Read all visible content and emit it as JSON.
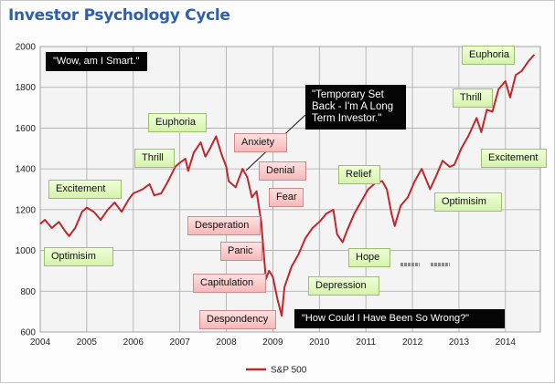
{
  "chart_data": {
    "type": "line",
    "title": "Investor Psychology Cycle",
    "xlabel": "",
    "ylabel": "",
    "ylim": [
      600,
      2000
    ],
    "xlim": [
      2004,
      2014.75
    ],
    "grid": true,
    "legend_position": "bottom",
    "x_ticks": [
      "2004",
      "2005",
      "2006",
      "2007",
      "2008",
      "2009",
      "2010",
      "2011",
      "2012",
      "2013",
      "2014"
    ],
    "y_ticks": [
      "600",
      "800",
      "1000",
      "1200",
      "1400",
      "1600",
      "1800",
      "2000"
    ],
    "series": [
      {
        "name": "S&P 500",
        "color": "#c0272d",
        "points": [
          [
            2004.0,
            1130
          ],
          [
            2004.1,
            1150
          ],
          [
            2004.25,
            1110
          ],
          [
            2004.4,
            1140
          ],
          [
            2004.55,
            1090
          ],
          [
            2004.62,
            1070
          ],
          [
            2004.75,
            1110
          ],
          [
            2004.9,
            1190
          ],
          [
            2005.0,
            1210
          ],
          [
            2005.15,
            1190
          ],
          [
            2005.3,
            1150
          ],
          [
            2005.45,
            1200
          ],
          [
            2005.6,
            1235
          ],
          [
            2005.75,
            1190
          ],
          [
            2005.9,
            1250
          ],
          [
            2006.0,
            1280
          ],
          [
            2006.2,
            1300
          ],
          [
            2006.35,
            1325
          ],
          [
            2006.45,
            1270
          ],
          [
            2006.6,
            1280
          ],
          [
            2006.75,
            1340
          ],
          [
            2006.9,
            1410
          ],
          [
            2007.0,
            1430
          ],
          [
            2007.12,
            1450
          ],
          [
            2007.18,
            1390
          ],
          [
            2007.3,
            1480
          ],
          [
            2007.45,
            1530
          ],
          [
            2007.55,
            1460
          ],
          [
            2007.65,
            1500
          ],
          [
            2007.78,
            1560
          ],
          [
            2007.9,
            1470
          ],
          [
            2008.0,
            1410
          ],
          [
            2008.05,
            1340
          ],
          [
            2008.2,
            1310
          ],
          [
            2008.35,
            1400
          ],
          [
            2008.45,
            1360
          ],
          [
            2008.55,
            1260
          ],
          [
            2008.65,
            1290
          ],
          [
            2008.75,
            1140
          ],
          [
            2008.8,
            1000
          ],
          [
            2008.85,
            860
          ],
          [
            2008.92,
            900
          ],
          [
            2009.0,
            870
          ],
          [
            2009.1,
            760
          ],
          [
            2009.19,
            680
          ],
          [
            2009.25,
            820
          ],
          [
            2009.4,
            920
          ],
          [
            2009.55,
            980
          ],
          [
            2009.7,
            1060
          ],
          [
            2009.85,
            1110
          ],
          [
            2010.0,
            1140
          ],
          [
            2010.15,
            1180
          ],
          [
            2010.3,
            1200
          ],
          [
            2010.38,
            1080
          ],
          [
            2010.5,
            1040
          ],
          [
            2010.6,
            1100
          ],
          [
            2010.75,
            1180
          ],
          [
            2010.9,
            1240
          ],
          [
            2011.05,
            1300
          ],
          [
            2011.2,
            1330
          ],
          [
            2011.35,
            1340
          ],
          [
            2011.45,
            1300
          ],
          [
            2011.55,
            1180
          ],
          [
            2011.62,
            1120
          ],
          [
            2011.75,
            1220
          ],
          [
            2011.9,
            1260
          ],
          [
            2012.05,
            1340
          ],
          [
            2012.2,
            1400
          ],
          [
            2012.38,
            1300
          ],
          [
            2012.5,
            1360
          ],
          [
            2012.65,
            1440
          ],
          [
            2012.8,
            1410
          ],
          [
            2012.9,
            1420
          ],
          [
            2013.05,
            1500
          ],
          [
            2013.2,
            1560
          ],
          [
            2013.38,
            1650
          ],
          [
            2013.48,
            1580
          ],
          [
            2013.6,
            1690
          ],
          [
            2013.72,
            1680
          ],
          [
            2013.85,
            1790
          ],
          [
            2014.0,
            1830
          ],
          [
            2014.1,
            1750
          ],
          [
            2014.22,
            1860
          ],
          [
            2014.35,
            1880
          ],
          [
            2014.5,
            1930
          ],
          [
            2014.62,
            1960
          ]
        ]
      }
    ],
    "annotations": [
      {
        "text": "\"Wow, am I Smart.\"",
        "style": "black"
      },
      {
        "text": "Euphoria",
        "style": "green"
      },
      {
        "text": "\"Temporary Set Back - I'm A Long Term Investor.\"",
        "style": "black"
      },
      {
        "text": "Thrill",
        "style": "green"
      },
      {
        "text": "Anxiety",
        "style": "red"
      },
      {
        "text": "Excitement",
        "style": "green"
      },
      {
        "text": "Denial",
        "style": "red"
      },
      {
        "text": "Relief",
        "style": "green"
      },
      {
        "text": "Fear",
        "style": "red"
      },
      {
        "text": "Desperation",
        "style": "red"
      },
      {
        "text": "Panic",
        "style": "red"
      },
      {
        "text": "Optimisim",
        "style": "green"
      },
      {
        "text": "Capitulation",
        "style": "red"
      },
      {
        "text": "Despondency",
        "style": "red"
      },
      {
        "text": "Depression",
        "style": "green"
      },
      {
        "text": "Hope",
        "style": "green"
      },
      {
        "text": "\"How Could I Have Been So Wrong?\"",
        "style": "black"
      },
      {
        "text": "Euphoria",
        "style": "green"
      },
      {
        "text": "Thrill",
        "style": "green"
      },
      {
        "text": "Excitement",
        "style": "green"
      },
      {
        "text": "Optimisim",
        "style": "green"
      }
    ]
  }
}
